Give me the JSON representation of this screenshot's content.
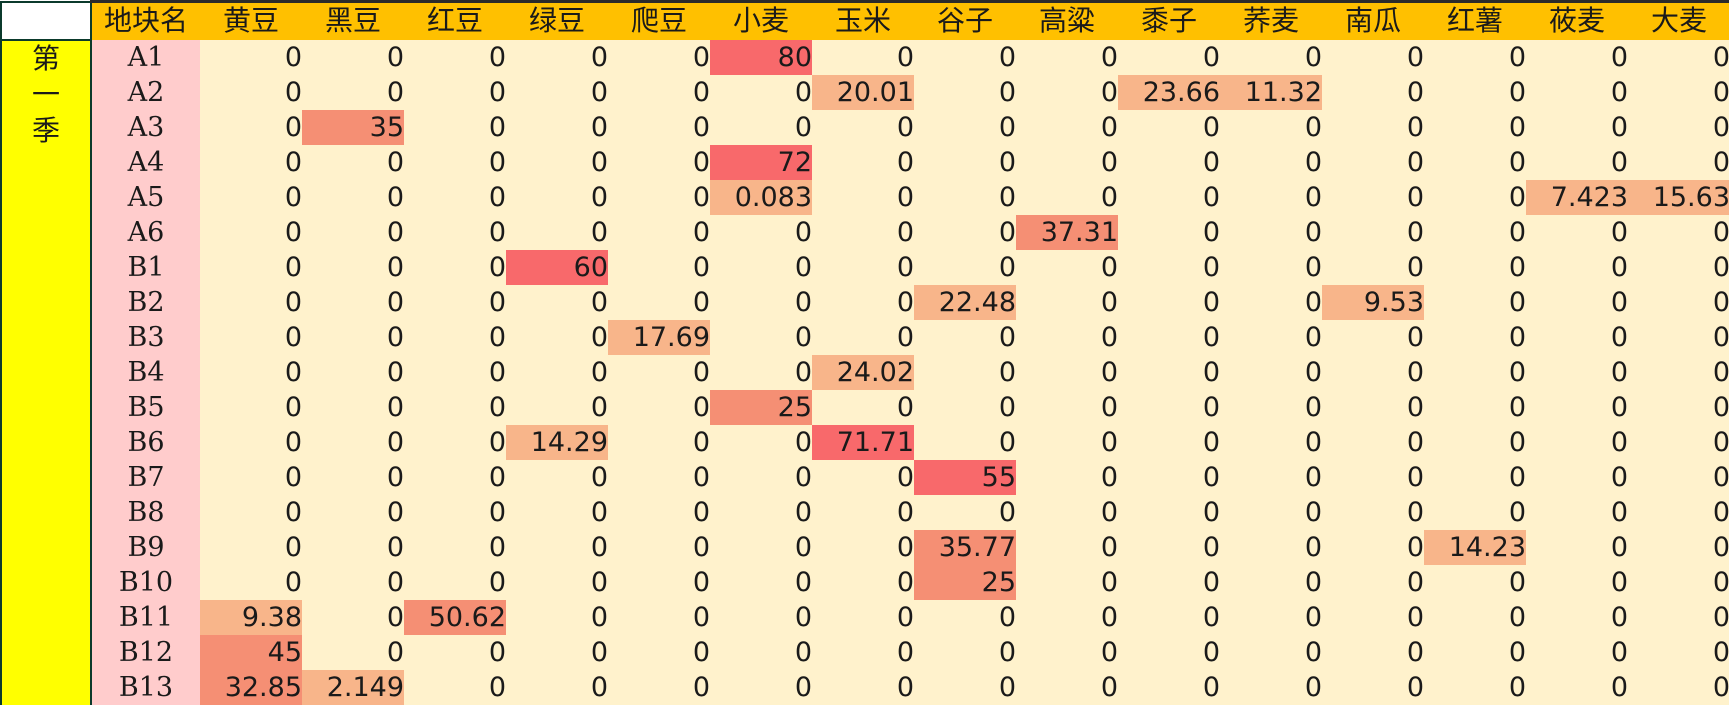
{
  "header": {
    "plot_col": "地块名",
    "crops": [
      "黄豆",
      "黑豆",
      "红豆",
      "绿豆",
      "爬豆",
      "小麦",
      "玉米",
      "谷子",
      "高粱",
      "黍子",
      "荞麦",
      "南瓜",
      "红薯",
      "莜麦",
      "大麦"
    ]
  },
  "season_label": [
    "第",
    "一",
    "季"
  ],
  "heat_colors": {
    "low": "#f8b58a",
    "mid": "#f58f74",
    "high": "#f8696b",
    "zero": "#fff2cc"
  },
  "rows": [
    {
      "plot": "A1",
      "values": [
        "0",
        "0",
        "0",
        "0",
        "0",
        "80",
        "0",
        "0",
        "0",
        "0",
        "0",
        "0",
        "0",
        "0",
        "0"
      ]
    },
    {
      "plot": "A2",
      "values": [
        "0",
        "0",
        "0",
        "0",
        "0",
        "0",
        "20.01",
        "0",
        "0",
        "23.66",
        "11.32",
        "0",
        "0",
        "0",
        "0"
      ]
    },
    {
      "plot": "A3",
      "values": [
        "0",
        "35",
        "0",
        "0",
        "0",
        "0",
        "0",
        "0",
        "0",
        "0",
        "0",
        "0",
        "0",
        "0",
        "0"
      ]
    },
    {
      "plot": "A4",
      "values": [
        "0",
        "0",
        "0",
        "0",
        "0",
        "72",
        "0",
        "0",
        "0",
        "0",
        "0",
        "0",
        "0",
        "0",
        "0"
      ]
    },
    {
      "plot": "A5",
      "values": [
        "0",
        "0",
        "0",
        "0",
        "0",
        "0.083",
        "0",
        "0",
        "0",
        "0",
        "0",
        "0",
        "0",
        "7.423",
        "15.63"
      ]
    },
    {
      "plot": "A6",
      "values": [
        "0",
        "0",
        "0",
        "0",
        "0",
        "0",
        "0",
        "0",
        "37.31",
        "0",
        "0",
        "0",
        "0",
        "0",
        "0"
      ]
    },
    {
      "plot": "B1",
      "values": [
        "0",
        "0",
        "0",
        "60",
        "0",
        "0",
        "0",
        "0",
        "0",
        "0",
        "0",
        "0",
        "0",
        "0",
        "0"
      ]
    },
    {
      "plot": "B2",
      "values": [
        "0",
        "0",
        "0",
        "0",
        "0",
        "0",
        "0",
        "22.48",
        "0",
        "0",
        "0",
        "9.53",
        "0",
        "0",
        "0"
      ]
    },
    {
      "plot": "B3",
      "values": [
        "0",
        "0",
        "0",
        "0",
        "17.69",
        "0",
        "0",
        "0",
        "0",
        "0",
        "0",
        "0",
        "0",
        "0",
        "0"
      ]
    },
    {
      "plot": "B4",
      "values": [
        "0",
        "0",
        "0",
        "0",
        "0",
        "0",
        "24.02",
        "0",
        "0",
        "0",
        "0",
        "0",
        "0",
        "0",
        "0"
      ]
    },
    {
      "plot": "B5",
      "values": [
        "0",
        "0",
        "0",
        "0",
        "0",
        "25",
        "0",
        "0",
        "0",
        "0",
        "0",
        "0",
        "0",
        "0",
        "0"
      ]
    },
    {
      "plot": "B6",
      "values": [
        "0",
        "0",
        "0",
        "14.29",
        "0",
        "0",
        "71.71",
        "0",
        "0",
        "0",
        "0",
        "0",
        "0",
        "0",
        "0"
      ]
    },
    {
      "plot": "B7",
      "values": [
        "0",
        "0",
        "0",
        "0",
        "0",
        "0",
        "0",
        "55",
        "0",
        "0",
        "0",
        "0",
        "0",
        "0",
        "0"
      ]
    },
    {
      "plot": "B8",
      "values": [
        "0",
        "0",
        "0",
        "0",
        "0",
        "0",
        "0",
        "0",
        "0",
        "0",
        "0",
        "0",
        "0",
        "0",
        "0"
      ]
    },
    {
      "plot": "B9",
      "values": [
        "0",
        "0",
        "0",
        "0",
        "0",
        "0",
        "0",
        "35.77",
        "0",
        "0",
        "0",
        "0",
        "14.23",
        "0",
        "0"
      ]
    },
    {
      "plot": "B10",
      "values": [
        "0",
        "0",
        "0",
        "0",
        "0",
        "0",
        "0",
        "25",
        "0",
        "0",
        "0",
        "0",
        "0",
        "0",
        "0"
      ]
    },
    {
      "plot": "B11",
      "values": [
        "9.38",
        "0",
        "50.62",
        "0",
        "0",
        "0",
        "0",
        "0",
        "0",
        "0",
        "0",
        "0",
        "0",
        "0",
        "0"
      ]
    },
    {
      "plot": "B12",
      "values": [
        "45",
        "0",
        "0",
        "0",
        "0",
        "0",
        "0",
        "0",
        "0",
        "0",
        "0",
        "0",
        "0",
        "0",
        "0"
      ]
    },
    {
      "plot": "B13",
      "values": [
        "32.85",
        "2.149",
        "0",
        "0",
        "0",
        "0",
        "0",
        "0",
        "0",
        "0",
        "0",
        "0",
        "0",
        "0",
        "0"
      ]
    }
  ]
}
